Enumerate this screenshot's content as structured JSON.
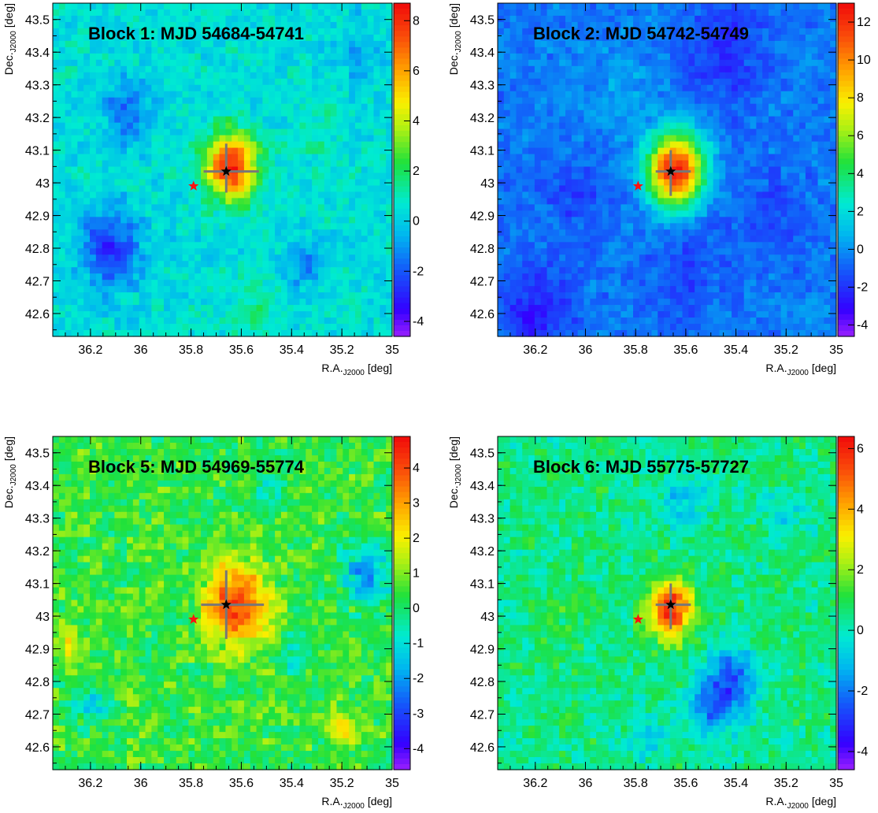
{
  "chart_data": [
    {
      "type": "heatmap",
      "title": "Block 1: MJD 54684-54741",
      "xlabel": {
        "main": "R.A.",
        "sub": "J2000",
        "unit": "[deg]"
      },
      "ylabel": {
        "main": "Dec.",
        "sub": "J2000",
        "unit": "[deg]"
      },
      "xlim": [
        36.35,
        35.0
      ],
      "ylim": [
        42.53,
        43.55
      ],
      "x_ticks": [
        "36.2",
        "36",
        "35.8",
        "35.6",
        "35.4",
        "35.2",
        "35"
      ],
      "y_ticks": [
        "42.6",
        "42.7",
        "42.8",
        "42.9",
        "43",
        "43.1",
        "43.2",
        "43.3",
        "43.4",
        "43.5"
      ],
      "zlim": [
        -4.6,
        8.7
      ],
      "z_ticks": [
        "-4",
        "-2",
        "0",
        "2",
        "4",
        "6",
        "8"
      ],
      "background": 0.4,
      "peak": {
        "ra": 35.64,
        "dec": 43.05,
        "value": 8.3,
        "sigma": 0.07
      },
      "blobs": [
        {
          "ra": 36.12,
          "dec": 42.8,
          "value": -3.3,
          "sigma": 0.08
        },
        {
          "ra": 36.05,
          "dec": 43.22,
          "value": -2.0,
          "sigma": 0.07
        },
        {
          "ra": 35.35,
          "dec": 42.75,
          "value": -1.6,
          "sigma": 0.05
        },
        {
          "ra": 35.15,
          "dec": 43.4,
          "value": -1.0,
          "sigma": 0.07
        },
        {
          "ra": 35.55,
          "dec": 42.62,
          "value": 1.0,
          "sigma": 0.06
        },
        {
          "ra": 35.3,
          "dec": 43.15,
          "value": 0.9,
          "sigma": 0.06
        }
      ],
      "best_fit": {
        "ra": 35.66,
        "dec": 43.035
      },
      "error_bar": {
        "ra_low": 35.53,
        "ra_high": 35.75,
        "dec_low": 42.97,
        "dec_high": 43.12
      },
      "star_marker": {
        "ra": 35.79,
        "dec": 42.99
      }
    },
    {
      "type": "heatmap",
      "title": "Block 2: MJD 54742-54749",
      "xlabel": {
        "main": "R.A.",
        "sub": "J2000",
        "unit": "[deg]"
      },
      "ylabel": {
        "main": "Dec.",
        "sub": "J2000",
        "unit": "[deg]"
      },
      "xlim": [
        36.35,
        35.0
      ],
      "ylim": [
        42.53,
        43.55
      ],
      "x_ticks": [
        "36.2",
        "36",
        "35.8",
        "35.6",
        "35.4",
        "35.2",
        "35"
      ],
      "y_ticks": [
        "42.6",
        "42.7",
        "42.8",
        "42.9",
        "43",
        "43.1",
        "43.2",
        "43.3",
        "43.4",
        "43.5"
      ],
      "zlim": [
        -4.6,
        13.0
      ],
      "z_ticks": [
        "-4",
        "-2",
        "0",
        "2",
        "4",
        "6",
        "8",
        "10",
        "12"
      ],
      "background": -0.5,
      "peak": {
        "ra": 35.64,
        "dec": 43.04,
        "value": 12.5,
        "sigma": 0.08
      },
      "blobs": [
        {
          "ra": 36.2,
          "dec": 42.6,
          "value": -2.0,
          "sigma": 0.1
        },
        {
          "ra": 35.6,
          "dec": 42.75,
          "value": -1.0,
          "sigma": 0.12
        },
        {
          "ra": 35.45,
          "dec": 43.4,
          "value": -1.5,
          "sigma": 0.12
        },
        {
          "ra": 36.05,
          "dec": 42.95,
          "value": -1.0,
          "sigma": 0.1
        },
        {
          "ra": 35.25,
          "dec": 42.9,
          "value": -1.0,
          "sigma": 0.1
        },
        {
          "ra": 35.85,
          "dec": 43.3,
          "value": 0.8,
          "sigma": 0.1
        }
      ],
      "best_fit": {
        "ra": 35.66,
        "dec": 43.035
      },
      "error_bar": {
        "ra_low": 35.58,
        "ra_high": 35.72,
        "dec_low": 42.96,
        "dec_high": 43.1
      },
      "star_marker": {
        "ra": 35.79,
        "dec": 42.99
      }
    },
    {
      "type": "heatmap",
      "title": "Block 5: MJD 54969-55774",
      "xlabel": {
        "main": "R.A.",
        "sub": "J2000",
        "unit": "[deg]"
      },
      "ylabel": {
        "main": "Dec.",
        "sub": "J2000",
        "unit": "[deg]"
      },
      "xlim": [
        36.35,
        35.0
      ],
      "ylim": [
        42.53,
        43.55
      ],
      "x_ticks": [
        "36.2",
        "36",
        "35.8",
        "35.6",
        "35.4",
        "35.2",
        "35"
      ],
      "y_ticks": [
        "42.6",
        "42.7",
        "42.8",
        "42.9",
        "43",
        "43.1",
        "43.2",
        "43.3",
        "43.4",
        "43.5"
      ],
      "zlim": [
        -4.6,
        4.9
      ],
      "z_ticks": [
        "-4",
        "-3",
        "-2",
        "-1",
        "0",
        "1",
        "2",
        "3",
        "4"
      ],
      "background": 0.4,
      "peak": {
        "ra": 35.62,
        "dec": 43.04,
        "value": 4.3,
        "sigma": 0.085
      },
      "blobs": [
        {
          "ra": 35.1,
          "dec": 43.12,
          "value": -2.6,
          "sigma": 0.06
        },
        {
          "ra": 36.2,
          "dec": 42.73,
          "value": -1.6,
          "sigma": 0.05
        },
        {
          "ra": 35.38,
          "dec": 42.9,
          "value": -1.3,
          "sigma": 0.05
        },
        {
          "ra": 35.5,
          "dec": 43.38,
          "value": -1.0,
          "sigma": 0.05
        },
        {
          "ra": 35.2,
          "dec": 42.66,
          "value": 1.8,
          "sigma": 0.04
        },
        {
          "ra": 36.3,
          "dec": 42.92,
          "value": 1.5,
          "sigma": 0.04
        }
      ],
      "best_fit": {
        "ra": 35.66,
        "dec": 43.035
      },
      "error_bar": {
        "ra_low": 35.51,
        "ra_high": 35.76,
        "dec_low": 42.93,
        "dec_high": 43.14
      },
      "star_marker": {
        "ra": 35.79,
        "dec": 42.99
      }
    },
    {
      "type": "heatmap",
      "title": "Block 6: MJD 55775-57727",
      "xlabel": {
        "main": "R.A.",
        "sub": "J2000",
        "unit": "[deg]"
      },
      "ylabel": {
        "main": "Dec.",
        "sub": "J2000",
        "unit": "[deg]"
      },
      "xlim": [
        36.35,
        35.0
      ],
      "ylim": [
        42.53,
        43.55
      ],
      "x_ticks": [
        "36.2",
        "36",
        "35.8",
        "35.6",
        "35.4",
        "35.2",
        "35"
      ],
      "y_ticks": [
        "42.6",
        "42.7",
        "42.8",
        "42.9",
        "43",
        "43.1",
        "43.2",
        "43.3",
        "43.4",
        "43.5"
      ],
      "zlim": [
        -4.6,
        6.4
      ],
      "z_ticks": [
        "-4",
        "-2",
        "0",
        "2",
        "4",
        "6"
      ],
      "background": 0.5,
      "peak": {
        "ra": 35.66,
        "dec": 43.02,
        "value": 6.0,
        "sigma": 0.06
      },
      "blobs": [
        {
          "ra": 35.42,
          "dec": 42.8,
          "value": -3.2,
          "sigma": 0.07
        },
        {
          "ra": 35.52,
          "dec": 42.7,
          "value": -2.0,
          "sigma": 0.06
        },
        {
          "ra": 35.6,
          "dec": 43.35,
          "value": -1.5,
          "sigma": 0.07
        },
        {
          "ra": 35.2,
          "dec": 43.3,
          "value": -1.0,
          "sigma": 0.06
        },
        {
          "ra": 35.75,
          "dec": 42.62,
          "value": -1.0,
          "sigma": 0.06
        },
        {
          "ra": 36.1,
          "dec": 43.0,
          "value": 0.5,
          "sigma": 0.08
        }
      ],
      "best_fit": {
        "ra": 35.66,
        "dec": 43.035
      },
      "error_bar": {
        "ra_low": 35.58,
        "ra_high": 35.72,
        "dec_low": 42.96,
        "dec_high": 43.1
      },
      "star_marker": {
        "ra": 35.79,
        "dec": 42.99
      }
    }
  ]
}
